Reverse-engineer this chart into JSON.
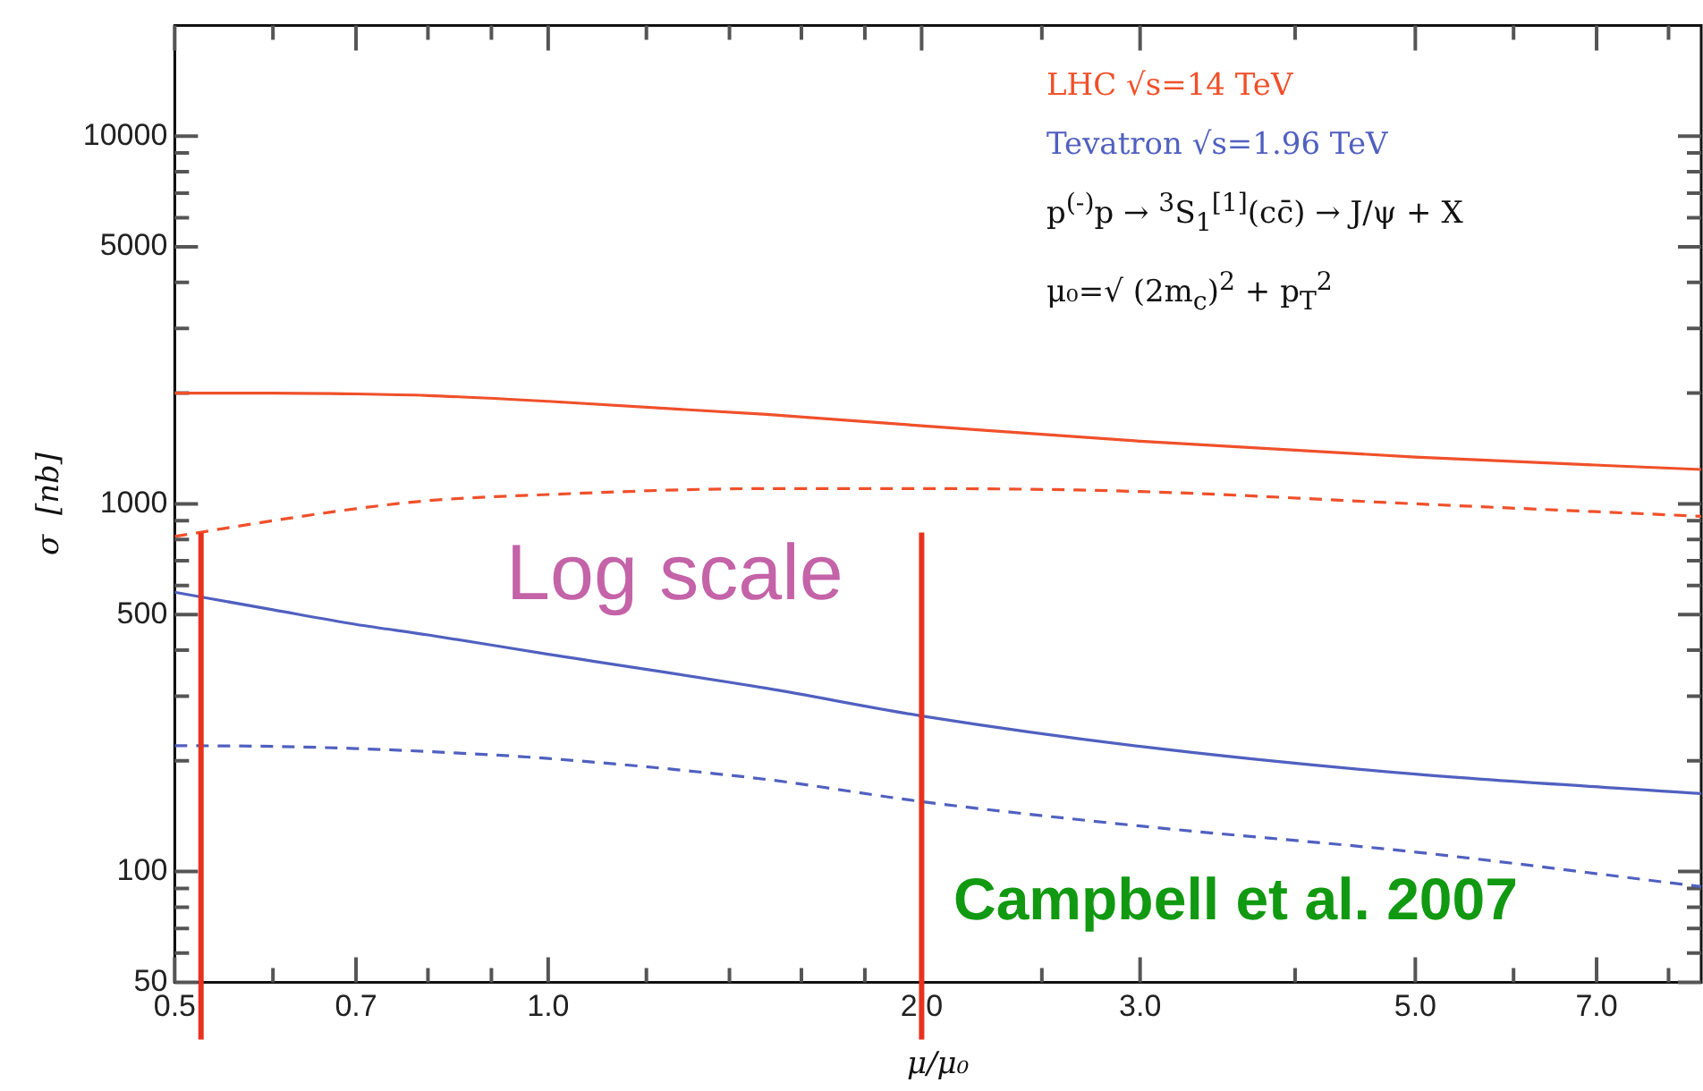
{
  "chart_data": {
    "type": "line",
    "xlabel": "μ/μ₀",
    "ylabel": "σ  [nb]",
    "log": "xy",
    "grid": false,
    "legend": "top right",
    "marker": "none",
    "x": [
      0.5,
      0.6,
      0.7,
      0.8,
      1.0,
      1.5,
      2.0,
      3.0,
      5.0,
      8.5
    ],
    "series": [
      {
        "name": "LHC √s=14 TeV",
        "color": "#f0502a",
        "line_style": "solid",
        "values": [
          2000,
          2000,
          1990,
          1970,
          1900,
          1750,
          1630,
          1480,
          1340,
          1240
        ]
      },
      {
        "color": "#f0502a",
        "line_style": "dashed",
        "values": [
          815,
          900,
          970,
          1020,
          1060,
          1100,
          1100,
          1080,
          1000,
          925
        ]
      },
      {
        "name": "Tevatron √s=1.96 TeV",
        "color": "#5060c0",
        "line_style": "solid",
        "values": [
          575,
          515,
          470,
          440,
          390,
          315,
          265,
          219,
          184,
          163
        ]
      },
      {
        "color": "#5060c0",
        "line_style": "dashed",
        "values": [
          220,
          219,
          216,
          212,
          203,
          178,
          155,
          133,
          113,
          91
        ]
      }
    ],
    "xlim": [
      0.5,
      8.5
    ],
    "ylim": [
      50,
      20000
    ],
    "xticks": [
      0.5,
      {
        "value": 0.6,
        "label": null
      },
      0.7,
      {
        "value": 0.8,
        "label": null
      },
      {
        "value": 0.9,
        "label": null
      },
      {
        "value": 1,
        "label": "1.0"
      },
      {
        "value": 1.2,
        "label": null
      },
      {
        "value": 1.4,
        "label": null
      },
      {
        "value": 1.6,
        "label": null
      },
      {
        "value": 1.8,
        "label": null
      },
      {
        "value": 2,
        "label": "2.0"
      },
      {
        "value": 2.5,
        "label": null
      },
      {
        "value": 3,
        "label": "3.0"
      },
      {
        "value": 4,
        "label": null
      },
      {
        "value": 5,
        "label": "5.0"
      },
      {
        "value": 6,
        "label": null
      },
      {
        "value": 7,
        "label": "7.0"
      },
      {
        "value": 8,
        "label": null
      }
    ],
    "yticks": [
      50,
      {
        "value": 60,
        "label": null
      },
      {
        "value": 70,
        "label": null
      },
      {
        "value": 80,
        "label": null
      },
      {
        "value": 90,
        "label": null
      },
      100,
      {
        "value": 200,
        "label": null
      },
      {
        "value": 300,
        "label": null
      },
      {
        "value": 400,
        "label": null
      },
      500,
      {
        "value": 600,
        "label": null
      },
      {
        "value": 700,
        "label": null
      },
      {
        "value": 800,
        "label": null
      },
      {
        "value": 900,
        "label": null
      },
      1000,
      {
        "value": 2000,
        "label": null
      },
      {
        "value": 3000,
        "label": null
      },
      {
        "value": 4000,
        "label": null
      },
      5000,
      {
        "value": 6000,
        "label": null
      },
      {
        "value": 7000,
        "label": null
      },
      {
        "value": 8000,
        "label": null
      },
      {
        "value": 9000,
        "label": null
      },
      10000
    ],
    "ref_lines": [
      {
        "axis": "x",
        "value": 0.525,
        "color": "#e8321e"
      },
      {
        "axis": "x",
        "value": 2.0,
        "color": "#e8321e"
      }
    ],
    "annotations": [
      "p$^{(-)}$p → $^{3}$S$_{1}$$^{[1]}$(cc̄) → J/ψ + X",
      "μ₀=√ (2m$_{c}$)$^{2}$ + p$_{T}$$^{2}$",
      "Log scale",
      "Campbell et al. 2007"
    ]
  }
}
